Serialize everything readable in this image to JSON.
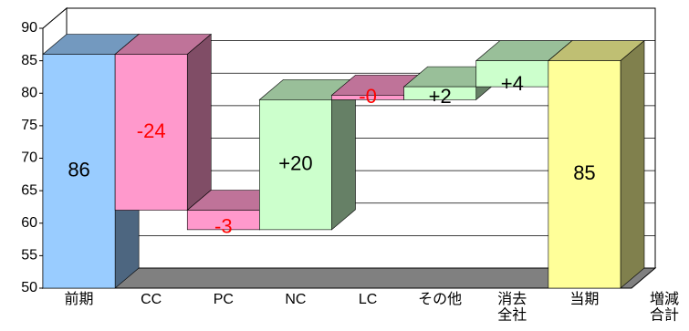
{
  "chart_data": {
    "type": "waterfall",
    "categories": [
      "前期",
      "CC",
      "PC",
      "NC",
      "LC",
      "その他",
      "消去\n全社",
      "当期"
    ],
    "values": [
      86,
      -24,
      -3,
      20,
      0,
      2,
      4,
      85
    ],
    "value_labels": [
      "86",
      "-24",
      "-3",
      "+20",
      "-0",
      "+2",
      "+4",
      "85"
    ],
    "colors": [
      "#99ccff",
      "#ff99cc",
      "#ff99cc",
      "#ccffcc",
      "#ff99cc",
      "#ccffcc",
      "#ccffcc",
      "#ffff99"
    ],
    "label_colors": [
      "#000000",
      "#ff0000",
      "#ff0000",
      "#000000",
      "#ff0000",
      "#000000",
      "#000000",
      "#000000"
    ],
    "x_label": "増減\n合計",
    "ylim": [
      50,
      90
    ],
    "yticks": [
      50,
      55,
      60,
      65,
      70,
      75,
      80,
      85,
      90
    ],
    "grid": true
  }
}
